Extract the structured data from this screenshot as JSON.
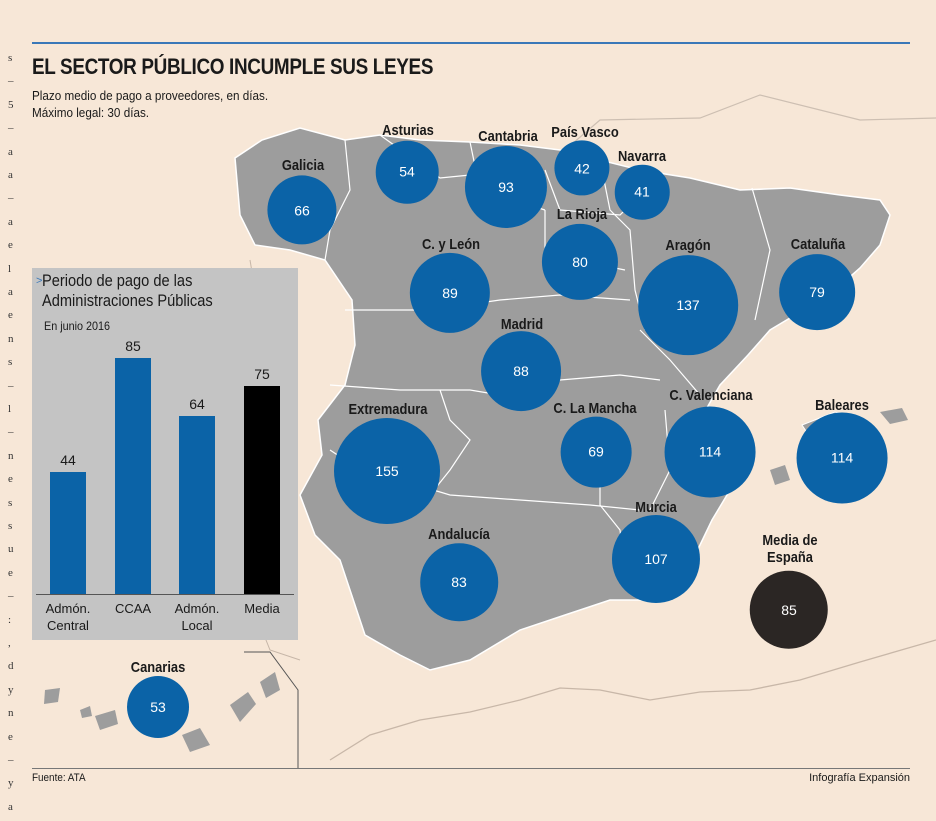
{
  "margin_letters": [
    "s",
    "–",
    "5",
    "–",
    "a",
    "a",
    "–",
    "a",
    "e",
    "l",
    "a",
    "e",
    "n",
    "s",
    "–",
    "l",
    "–",
    "n",
    "e",
    "s",
    "s",
    "u",
    "e",
    "–",
    ":",
    ",",
    "d",
    "y",
    "n",
    "e",
    "–",
    "y",
    "a"
  ],
  "title": "EL SECTOR PÚBLICO INCUMPLE SUS LEYES",
  "subtitle": [
    "Plazo medio de pago a proveedores, en días.",
    "Máximo legal: 30 días."
  ],
  "source": "Fuente: ATA",
  "credit": "Infografía Expansión",
  "colors": {
    "bubble": "#0b63a7",
    "media_bubble": "#2b2624",
    "land": "#9d9d9d",
    "panel": "#c4c4c4",
    "accent": "#3a78b8"
  },
  "chart_data": [
    {
      "type": "bubble-map",
      "title": "Plazo medio de pago a proveedores por comunidad autónoma",
      "unit": "días",
      "regions": [
        {
          "name": "Asturias",
          "value": 54
        },
        {
          "name": "Cantabria",
          "value": 93
        },
        {
          "name": "País Vasco",
          "value": 42
        },
        {
          "name": "Navarra",
          "value": 41
        },
        {
          "name": "Galicia",
          "value": 66
        },
        {
          "name": "La Rioja",
          "value": 80
        },
        {
          "name": "C. y León",
          "value": 89
        },
        {
          "name": "Aragón",
          "value": 137
        },
        {
          "name": "Cataluña",
          "value": 79
        },
        {
          "name": "Madrid",
          "value": 88
        },
        {
          "name": "Extremadura",
          "value": 155
        },
        {
          "name": "C. La Mancha",
          "value": 69
        },
        {
          "name": "C. Valenciana",
          "value": 114
        },
        {
          "name": "Baleares",
          "value": 114
        },
        {
          "name": "Murcia",
          "value": 107
        },
        {
          "name": "Andalucía",
          "value": 83
        },
        {
          "name": "Canarias",
          "value": 53
        },
        {
          "name": "Media de España",
          "value": 85
        }
      ]
    },
    {
      "type": "bar",
      "title": "Periodo de pago de las Administraciones Públicas",
      "subtitle": "En junio 2016",
      "categories": [
        "Admón. Central",
        "CCAA",
        "Admón. Local",
        "Media"
      ],
      "values": [
        44,
        85,
        64,
        75
      ],
      "colors": [
        "#0b63a7",
        "#0b63a7",
        "#0b63a7",
        "#000000"
      ],
      "ylim": [
        0,
        90
      ]
    }
  ]
}
